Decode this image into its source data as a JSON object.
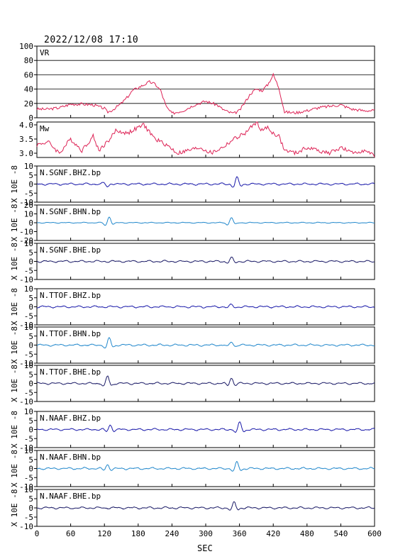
{
  "chart_data": {
    "type": "line",
    "title": "2022/12/08  17:10",
    "xlabel": "SEC",
    "xlim": [
      0,
      600
    ],
    "xticks": [
      "0",
      "60",
      "120",
      "180",
      "240",
      "300",
      "360",
      "420",
      "480",
      "540",
      "600"
    ],
    "colors": {
      "axis": "#000000",
      "vr": "#dd2255",
      "mw": "#dd2255",
      "bhz": "#1a1aaa",
      "bhn": "#2288cc",
      "bhe": "#1a1a66"
    },
    "panels": [
      {
        "label": "VR",
        "kind": "vr",
        "ylim": [
          0,
          100
        ],
        "yticks": [
          "0",
          "20",
          "40",
          "60",
          "80",
          "100"
        ],
        "grid": true,
        "points": [
          [
            0,
            12
          ],
          [
            20,
            12
          ],
          [
            40,
            14
          ],
          [
            60,
            19
          ],
          [
            80,
            19
          ],
          [
            100,
            18
          ],
          [
            120,
            13
          ],
          [
            125,
            8
          ],
          [
            130,
            9
          ],
          [
            140,
            14
          ],
          [
            150,
            20
          ],
          [
            160,
            28
          ],
          [
            170,
            38
          ],
          [
            180,
            42
          ],
          [
            190,
            46
          ],
          [
            200,
            50
          ],
          [
            210,
            47
          ],
          [
            220,
            38
          ],
          [
            230,
            15
          ],
          [
            240,
            6
          ],
          [
            260,
            10
          ],
          [
            280,
            18
          ],
          [
            300,
            23
          ],
          [
            320,
            18
          ],
          [
            330,
            12
          ],
          [
            340,
            8
          ],
          [
            350,
            6
          ],
          [
            360,
            10
          ],
          [
            370,
            22
          ],
          [
            380,
            34
          ],
          [
            390,
            40
          ],
          [
            400,
            38
          ],
          [
            410,
            46
          ],
          [
            420,
            60
          ],
          [
            430,
            42
          ],
          [
            440,
            8
          ],
          [
            460,
            7
          ],
          [
            480,
            10
          ],
          [
            500,
            14
          ],
          [
            520,
            16
          ],
          [
            540,
            18
          ],
          [
            560,
            12
          ],
          [
            580,
            10
          ],
          [
            600,
            10
          ]
        ]
      },
      {
        "label": "Mw",
        "kind": "mw",
        "ylim": [
          2.85,
          4.1
        ],
        "yticks": [
          "3.0",
          "3.5",
          "4.0"
        ],
        "grid": false,
        "points": [
          [
            0,
            3.3
          ],
          [
            20,
            3.4
          ],
          [
            40,
            3.0
          ],
          [
            60,
            3.5
          ],
          [
            80,
            3.1
          ],
          [
            100,
            3.6
          ],
          [
            110,
            3.1
          ],
          [
            130,
            3.5
          ],
          [
            140,
            3.8
          ],
          [
            160,
            3.7
          ],
          [
            180,
            3.9
          ],
          [
            190,
            4.0
          ],
          [
            210,
            3.5
          ],
          [
            230,
            3.3
          ],
          [
            250,
            3.0
          ],
          [
            270,
            3.1
          ],
          [
            290,
            3.2
          ],
          [
            310,
            3.0
          ],
          [
            330,
            3.2
          ],
          [
            350,
            3.5
          ],
          [
            370,
            3.7
          ],
          [
            380,
            3.9
          ],
          [
            390,
            4.1
          ],
          [
            400,
            3.8
          ],
          [
            410,
            3.9
          ],
          [
            420,
            3.7
          ],
          [
            430,
            3.6
          ],
          [
            440,
            3.1
          ],
          [
            460,
            3.0
          ],
          [
            480,
            3.2
          ],
          [
            500,
            3.1
          ],
          [
            520,
            3.0
          ],
          [
            540,
            3.2
          ],
          [
            560,
            3.0
          ],
          [
            580,
            3.1
          ],
          [
            600,
            2.9
          ]
        ]
      },
      {
        "label": "N.SGNF.BHZ.bp",
        "kind": "bhz",
        "ylim": [
          -10,
          10
        ],
        "yticks": [
          "-10",
          "-5",
          "0",
          "5",
          "10"
        ],
        "ylabel": "X 10E -8",
        "events": [
          {
            "t": 125,
            "amp": -1.5
          },
          {
            "t": 355,
            "amp": 3.5
          }
        ]
      },
      {
        "label": "N.SGNF.BHN.bp",
        "kind": "bhn",
        "ylim": [
          -20,
          20
        ],
        "yticks": [
          "-20",
          "-10",
          "0",
          "10",
          "20"
        ],
        "ylabel": "X 10E -8",
        "events": [
          {
            "t": 128,
            "amp": 7
          },
          {
            "t": 345,
            "amp": 6
          }
        ]
      },
      {
        "label": "N.SGNF.BHE.bp",
        "kind": "bhe",
        "ylim": [
          -10,
          10
        ],
        "yticks": [
          "-10",
          "-5",
          "0",
          "5",
          "10"
        ],
        "ylabel": "X 10E -8",
        "events": [
          {
            "t": 345,
            "amp": 2
          }
        ]
      },
      {
        "label": "N.TTOF.BHZ.bp",
        "kind": "bhz",
        "ylim": [
          -10,
          10
        ],
        "yticks": [
          "-10",
          "-5",
          "0",
          "5",
          "10"
        ],
        "ylabel": "X 10E -8",
        "events": [
          {
            "t": 345,
            "amp": 1.2
          }
        ]
      },
      {
        "label": "N.TTOF.BHN.bp",
        "kind": "bhn",
        "ylim": [
          -10,
          10
        ],
        "yticks": [
          "-10",
          "-5",
          "0",
          "5",
          "10"
        ],
        "ylabel": "X 10E -8",
        "events": [
          {
            "t": 128,
            "amp": 4
          },
          {
            "t": 345,
            "amp": 2
          }
        ]
      },
      {
        "label": "N.TTOF.BHE.bp",
        "kind": "bhe",
        "ylim": [
          -10,
          10
        ],
        "yticks": [
          "-10",
          "-5",
          "0",
          "5",
          "10"
        ],
        "ylabel": "X 10E -8",
        "events": [
          {
            "t": 125,
            "amp": 4
          },
          {
            "t": 345,
            "amp": 3
          }
        ]
      },
      {
        "label": "N.NAAF.BHZ.bp",
        "kind": "bhz",
        "ylim": [
          -10,
          10
        ],
        "yticks": [
          "-10",
          "-5",
          "0",
          "5",
          "10"
        ],
        "ylabel": "X 10E -8",
        "events": [
          {
            "t": 130,
            "amp": 2.5
          },
          {
            "t": 360,
            "amp": 4
          }
        ]
      },
      {
        "label": "N.NAAF.BHN.bp",
        "kind": "bhn",
        "ylim": [
          -10,
          10
        ],
        "yticks": [
          "-10",
          "-5",
          "0",
          "5",
          "10"
        ],
        "ylabel": "X 10E -8",
        "events": [
          {
            "t": 125,
            "amp": 2
          },
          {
            "t": 355,
            "amp": 3.5
          }
        ]
      },
      {
        "label": "N.NAAF.BHE.bp",
        "kind": "bhe",
        "ylim": [
          -10,
          10
        ],
        "yticks": [
          "-10",
          "-5",
          "0",
          "5",
          "10"
        ],
        "ylabel": "X 10E -8",
        "events": [
          {
            "t": 350,
            "amp": 3
          }
        ]
      }
    ]
  }
}
